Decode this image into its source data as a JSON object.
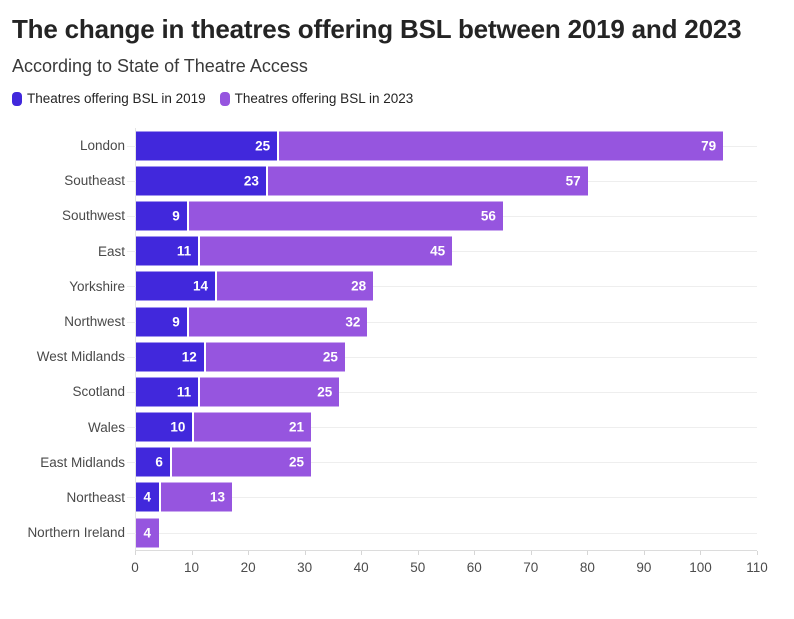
{
  "header": {
    "title": "The change in theatres offering BSL between 2019 and 2023",
    "subtitle": "According to State of Theatre Access"
  },
  "legend": {
    "position": "top",
    "items": [
      {
        "label": "Theatres offering BSL in 2019",
        "color": "#4128dc"
      },
      {
        "label": "Theatres offering BSL in 2023",
        "color": "#9655df"
      }
    ]
  },
  "chart_data": {
    "type": "bar",
    "orientation": "horizontal",
    "stacked": true,
    "title": "The change in theatres offering BSL between 2019 and 2023",
    "subtitle": "According to State of Theatre Access",
    "xlabel": "",
    "ylabel": "",
    "categories": [
      "London",
      "Southeast",
      "Southwest",
      "East",
      "Yorkshire",
      "Northwest",
      "West Midlands",
      "Scotland",
      "Wales",
      "East Midlands",
      "Northeast",
      "Northern Ireland"
    ],
    "series": [
      {
        "name": "Theatres offering BSL in 2019",
        "color": "#4128dc",
        "values": [
          25,
          23,
          9,
          11,
          14,
          9,
          12,
          11,
          10,
          6,
          4,
          0
        ]
      },
      {
        "name": "Theatres offering BSL in 2023",
        "color": "#9655df",
        "values": [
          79,
          57,
          56,
          45,
          28,
          32,
          25,
          25,
          21,
          25,
          13,
          4
        ]
      }
    ],
    "xlim": [
      0,
      110
    ],
    "x_ticks": [
      0,
      10,
      20,
      30,
      40,
      50,
      60,
      70,
      80,
      90,
      100,
      110
    ],
    "grid": "horizontal-per-row",
    "value_labels": "white-inside-segments",
    "legend_position": "top"
  },
  "colors": {
    "series_2019": "#4128dc",
    "series_2023": "#9655df",
    "title_text": "#242424",
    "axis_text": "#4c4c4c",
    "gridline": "#eeeeee",
    "background": "#ffffff"
  }
}
